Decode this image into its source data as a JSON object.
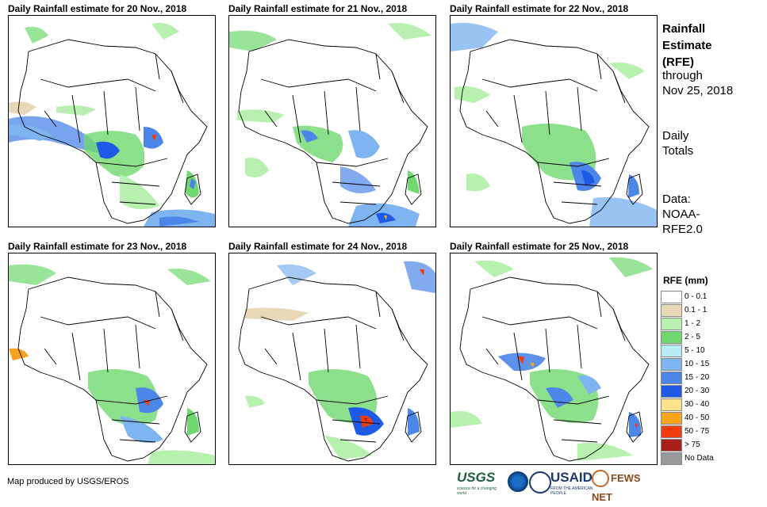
{
  "panels": [
    {
      "title": "Daily Rainfall estimate for 20 Nov., 2018"
    },
    {
      "title": "Daily Rainfall estimate for 21 Nov., 2018"
    },
    {
      "title": "Daily Rainfall estimate for 22 Nov., 2018"
    },
    {
      "title": "Daily Rainfall estimate for 23 Nov., 2018"
    },
    {
      "title": "Daily Rainfall estimate for 24 Nov., 2018"
    },
    {
      "title": "Daily Rainfall estimate for 25 Nov., 2018"
    }
  ],
  "sidebar": {
    "title_line1": "Rainfall",
    "title_line2": "Estimate",
    "title_line3": "(RFE)",
    "through_line1": "through",
    "through_line2": "Nov 25, 2018",
    "totals_line1": "Daily",
    "totals_line2": "Totals",
    "data_line1": "Data:",
    "data_line2": "NOAA-",
    "data_line3": "RFE2.0"
  },
  "legend": {
    "title": "RFE (mm)",
    "items": [
      {
        "label": "0 - 0.1",
        "color": "#ffffff"
      },
      {
        "label": "0.1 - 1",
        "color": "#e8d8b8"
      },
      {
        "label": "1 - 2",
        "color": "#b8f0b0"
      },
      {
        "label": "2 - 5",
        "color": "#6fd86f"
      },
      {
        "label": "5 - 10",
        "color": "#b8ecf5"
      },
      {
        "label": "10 - 15",
        "color": "#7eb4f0"
      },
      {
        "label": "15 - 20",
        "color": "#4b86e8"
      },
      {
        "label": "20 - 30",
        "color": "#1e5ae6"
      },
      {
        "label": "30 - 40",
        "color": "#fbe38c"
      },
      {
        "label": "40 - 50",
        "color": "#f7a21c"
      },
      {
        "label": "50 - 75",
        "color": "#f03c0e"
      },
      {
        "label": "> 75",
        "color": "#a8201a"
      },
      {
        "label": "No Data",
        "color": "#999999"
      }
    ]
  },
  "footer": {
    "credit": "Map produced by USGS/EROS"
  },
  "logos": {
    "usgs": "USGS",
    "usgs_tagline": "science for a changing world",
    "usaid": "USAID",
    "usaid_tagline": "FROM THE AMERICAN PEOPLE",
    "fews": "FEWS NET"
  }
}
